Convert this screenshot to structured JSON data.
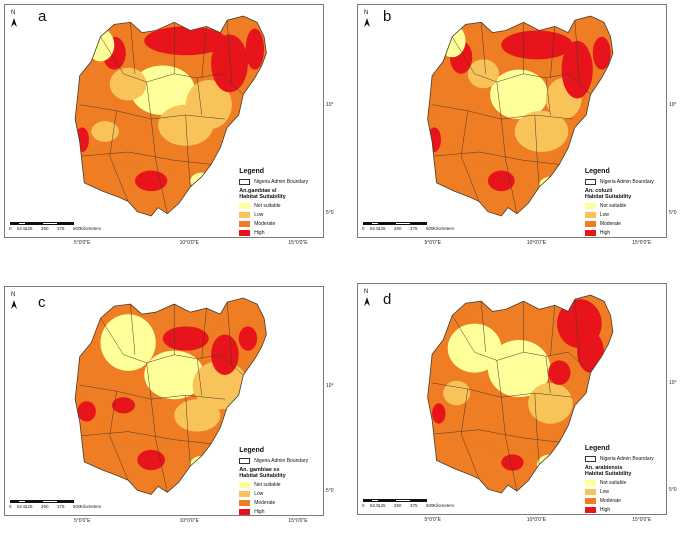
{
  "panels": [
    {
      "letter": "a",
      "species": "An.gambiae sl"
    },
    {
      "letter": "b",
      "species": "An. coluzii"
    },
    {
      "letter": "c",
      "species": "An. gambiae ss"
    },
    {
      "letter": "d",
      "species": "An. arabiensis"
    }
  ],
  "north_label": "N",
  "legend": {
    "title": "Legend",
    "boundary_label": "Nigeria Admin Boundary",
    "suitability_title": "Habitat Suitability",
    "classes": [
      {
        "label": "Not suitable",
        "color": "#ffff99"
      },
      {
        "label": "Low",
        "color": "#f8c45a"
      },
      {
        "label": "Moderate",
        "color": "#ef7d23"
      },
      {
        "label": "High",
        "color": "#e8141b"
      }
    ]
  },
  "scale_bar": {
    "ticks": [
      "0",
      "62.5",
      "125",
      "250",
      "375",
      "500"
    ],
    "unit": "Kilometers"
  },
  "graticule": {
    "longitudes": [
      "5°0'0\"E",
      "10°0'0\"E",
      "15°0'0\"E"
    ],
    "latitudes": [
      "10°",
      "5°0"
    ]
  },
  "colors": {
    "not_suitable": "#ffff99",
    "low": "#f8c45a",
    "moderate": "#ef7d23",
    "high": "#e8141b",
    "boundary": "#4a3a2a"
  }
}
